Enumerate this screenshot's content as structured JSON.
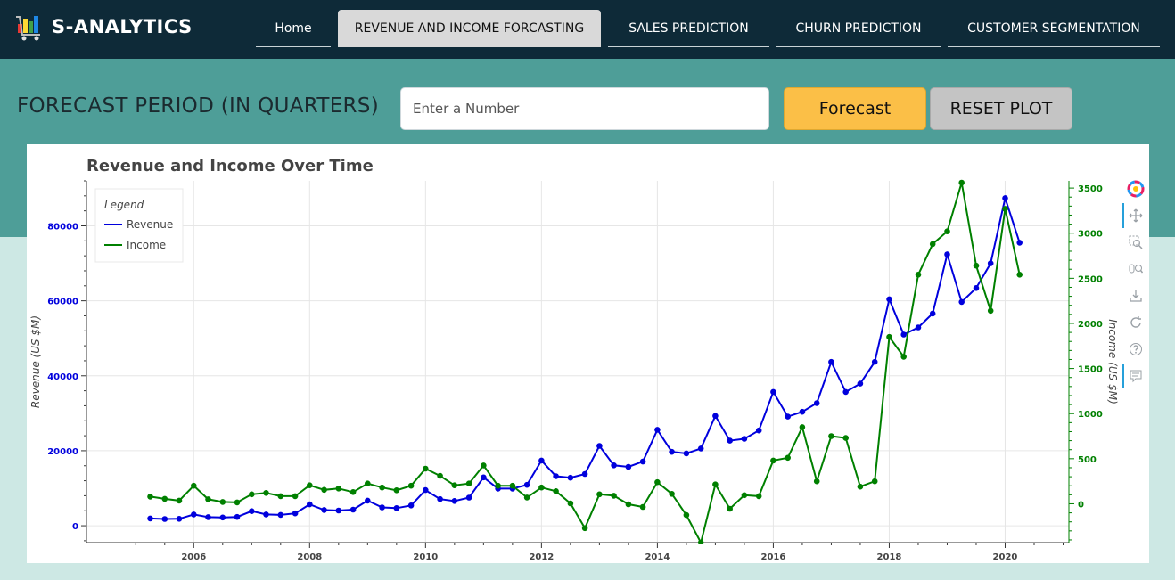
{
  "brand": {
    "title": "S-ANALYTICS",
    "logo_icon": "cart-chart-icon"
  },
  "nav": {
    "items": [
      {
        "label": "Home",
        "active": false
      },
      {
        "label": "REVENUE AND INCOME FORCASTING",
        "active": true
      },
      {
        "label": "SALES PREDICTION",
        "active": false
      },
      {
        "label": "CHURN PREDICTION",
        "active": false
      },
      {
        "label": "CUSTOMER SEGMENTATION",
        "active": false
      }
    ]
  },
  "forecast": {
    "label": "FORECAST PERIOD (IN QUARTERS)",
    "input_value": "",
    "input_placeholder": "Enter a Number",
    "forecast_button": "Forecast",
    "reset_button": "RESET PLOT"
  },
  "colors": {
    "navbar": "#0e2a38",
    "band": "#4e9e98",
    "page_bg": "#cde8e4",
    "forecast_button": "#fbbf47",
    "reset_button": "#c4c4c4",
    "revenue": "#0000dd",
    "income": "#008000"
  },
  "toolbar": {
    "tools": [
      "bokeh-logo-icon",
      "pan-icon",
      "box-zoom-icon",
      "wheel-zoom-icon",
      "save-icon",
      "reset-icon",
      "help-icon",
      "hover-icon"
    ]
  },
  "chart_data": {
    "type": "line",
    "title": "Revenue and Income Over Time",
    "ylabel": "Revenue (US $M)",
    "y2label": "Income (US $M)",
    "legend": {
      "title": "Legend",
      "placement": "top-left",
      "entries": [
        "Revenue",
        "Income"
      ]
    },
    "grid": true,
    "xlim": [
      2004.15,
      2021.1
    ],
    "ylim": [
      -4500,
      92000
    ],
    "y2lim": [
      -430,
      3580
    ],
    "x_ticks": [
      2006,
      2008,
      2010,
      2012,
      2014,
      2016,
      2018,
      2020
    ],
    "y_ticks": [
      0,
      20000,
      40000,
      60000,
      80000
    ],
    "y2_ticks": [
      0,
      500,
      1000,
      1500,
      2000,
      2500,
      3000,
      3500
    ],
    "series": [
      {
        "name": "Revenue",
        "axis": "left",
        "points": [
          [
            2005.25,
            1950
          ],
          [
            2005.5,
            1800
          ],
          [
            2005.75,
            1850
          ],
          [
            2006.0,
            3000
          ],
          [
            2006.25,
            2300
          ],
          [
            2006.5,
            2200
          ],
          [
            2006.75,
            2350
          ],
          [
            2007.0,
            3900
          ],
          [
            2007.25,
            3000
          ],
          [
            2007.5,
            2900
          ],
          [
            2007.75,
            3300
          ],
          [
            2008.0,
            5700
          ],
          [
            2008.25,
            4200
          ],
          [
            2008.5,
            4050
          ],
          [
            2008.75,
            4300
          ],
          [
            2009.0,
            6700
          ],
          [
            2009.25,
            4900
          ],
          [
            2009.5,
            4700
          ],
          [
            2009.75,
            5400
          ],
          [
            2010.0,
            9500
          ],
          [
            2010.25,
            7100
          ],
          [
            2010.5,
            6600
          ],
          [
            2010.75,
            7500
          ],
          [
            2011.0,
            12900
          ],
          [
            2011.25,
            9900
          ],
          [
            2011.5,
            9900
          ],
          [
            2011.75,
            10900
          ],
          [
            2012.0,
            17400
          ],
          [
            2012.25,
            13200
          ],
          [
            2012.5,
            12800
          ],
          [
            2012.75,
            13800
          ],
          [
            2013.0,
            21300
          ],
          [
            2013.25,
            16100
          ],
          [
            2013.5,
            15700
          ],
          [
            2013.75,
            17100
          ],
          [
            2014.0,
            25600
          ],
          [
            2014.25,
            19700
          ],
          [
            2014.5,
            19300
          ],
          [
            2014.75,
            20600
          ],
          [
            2015.0,
            29300
          ],
          [
            2015.25,
            22700
          ],
          [
            2015.5,
            23200
          ],
          [
            2015.75,
            25400
          ],
          [
            2016.0,
            35700
          ],
          [
            2016.25,
            29100
          ],
          [
            2016.5,
            30400
          ],
          [
            2016.75,
            32700
          ],
          [
            2017.0,
            43700
          ],
          [
            2017.25,
            35700
          ],
          [
            2017.5,
            37900
          ],
          [
            2017.75,
            43700
          ],
          [
            2018.0,
            60400
          ],
          [
            2018.25,
            51000
          ],
          [
            2018.5,
            52900
          ],
          [
            2018.75,
            56600
          ],
          [
            2019.0,
            72400
          ],
          [
            2019.25,
            59700
          ],
          [
            2019.5,
            63400
          ],
          [
            2019.75,
            70000
          ],
          [
            2020.0,
            87400
          ],
          [
            2020.25,
            75500
          ]
        ]
      },
      {
        "name": "Income",
        "axis": "right",
        "points": [
          [
            2005.25,
            80
          ],
          [
            2005.5,
            55
          ],
          [
            2005.75,
            35
          ],
          [
            2006.0,
            200
          ],
          [
            2006.25,
            50
          ],
          [
            2006.5,
            20
          ],
          [
            2006.75,
            15
          ],
          [
            2007.0,
            105
          ],
          [
            2007.25,
            120
          ],
          [
            2007.5,
            85
          ],
          [
            2007.75,
            85
          ],
          [
            2008.0,
            205
          ],
          [
            2008.25,
            155
          ],
          [
            2008.5,
            170
          ],
          [
            2008.75,
            130
          ],
          [
            2009.0,
            225
          ],
          [
            2009.25,
            180
          ],
          [
            2009.5,
            150
          ],
          [
            2009.75,
            200
          ],
          [
            2010.0,
            390
          ],
          [
            2010.25,
            310
          ],
          [
            2010.5,
            205
          ],
          [
            2010.75,
            225
          ],
          [
            2011.0,
            425
          ],
          [
            2011.25,
            200
          ],
          [
            2011.5,
            200
          ],
          [
            2011.75,
            70
          ],
          [
            2012.0,
            180
          ],
          [
            2012.25,
            140
          ],
          [
            2012.5,
            5
          ],
          [
            2012.75,
            -270
          ],
          [
            2013.0,
            105
          ],
          [
            2013.25,
            90
          ],
          [
            2013.5,
            -5
          ],
          [
            2013.75,
            -35
          ],
          [
            2014.0,
            240
          ],
          [
            2014.25,
            110
          ],
          [
            2014.5,
            -125
          ],
          [
            2014.75,
            -430
          ],
          [
            2015.0,
            215
          ],
          [
            2015.25,
            -55
          ],
          [
            2015.5,
            95
          ],
          [
            2015.75,
            85
          ],
          [
            2016.0,
            480
          ],
          [
            2016.25,
            510
          ],
          [
            2016.5,
            850
          ],
          [
            2016.75,
            250
          ],
          [
            2017.0,
            750
          ],
          [
            2017.25,
            730
          ],
          [
            2017.5,
            190
          ],
          [
            2017.75,
            250
          ],
          [
            2018.0,
            1850
          ],
          [
            2018.25,
            1630
          ],
          [
            2018.5,
            2540
          ],
          [
            2018.75,
            2880
          ],
          [
            2019.0,
            3020
          ],
          [
            2019.25,
            3560
          ],
          [
            2019.5,
            2640
          ],
          [
            2019.75,
            2140
          ],
          [
            2020.0,
            3270
          ],
          [
            2020.25,
            2540
          ]
        ]
      }
    ]
  }
}
